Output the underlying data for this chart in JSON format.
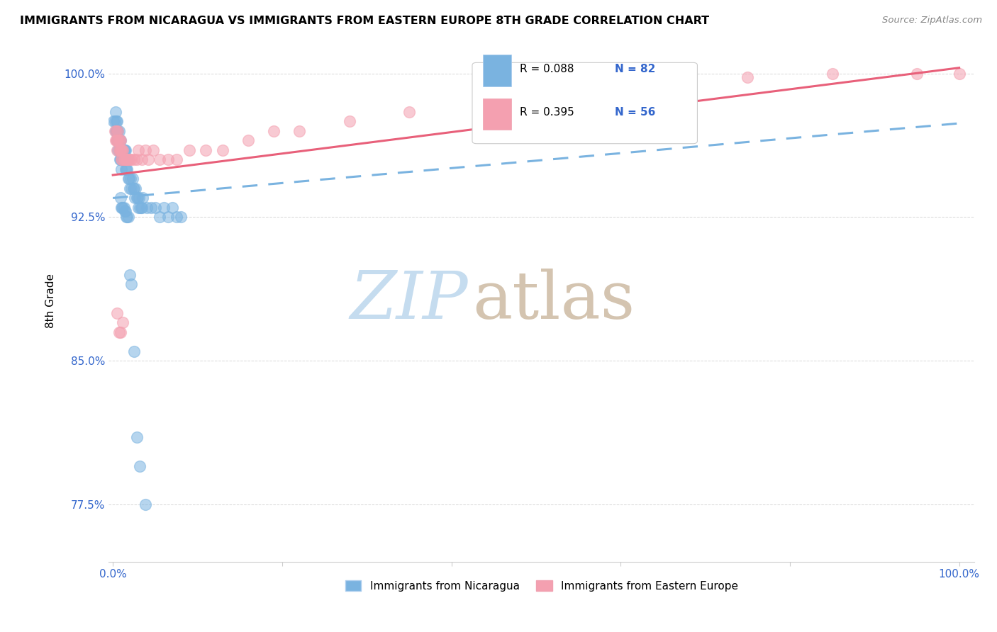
{
  "title": "IMMIGRANTS FROM NICARAGUA VS IMMIGRANTS FROM EASTERN EUROPE 8TH GRADE CORRELATION CHART",
  "source": "Source: ZipAtlas.com",
  "ylabel": "8th Grade",
  "y_min": 0.745,
  "y_max": 1.018,
  "x_min": -0.005,
  "x_max": 1.018,
  "color_nicaragua": "#7ab3e0",
  "color_eastern_europe": "#f4a0b0",
  "color_line_nicaragua": "#7ab3e0",
  "color_line_eastern_europe": "#e8607a",
  "watermark_zip": "ZIP",
  "watermark_atlas": "atlas",
  "watermark_color_zip": "#c8dff0",
  "watermark_color_atlas": "#d8c8b8",
  "nicaragua_x": [
    0.001,
    0.002,
    0.003,
    0.003,
    0.004,
    0.004,
    0.004,
    0.005,
    0.005,
    0.005,
    0.005,
    0.006,
    0.006,
    0.006,
    0.007,
    0.007,
    0.007,
    0.008,
    0.008,
    0.008,
    0.009,
    0.009,
    0.009,
    0.01,
    0.01,
    0.01,
    0.011,
    0.011,
    0.012,
    0.012,
    0.013,
    0.013,
    0.014,
    0.014,
    0.015,
    0.015,
    0.016,
    0.016,
    0.017,
    0.018,
    0.019,
    0.02,
    0.021,
    0.022,
    0.023,
    0.024,
    0.025,
    0.026,
    0.027,
    0.028,
    0.029,
    0.03,
    0.031,
    0.032,
    0.033,
    0.034,
    0.035,
    0.04,
    0.045,
    0.05,
    0.055,
    0.06,
    0.065,
    0.07,
    0.075,
    0.08,
    0.009,
    0.01,
    0.011,
    0.012,
    0.013,
    0.014,
    0.015,
    0.016,
    0.017,
    0.018,
    0.02,
    0.022,
    0.025,
    0.028,
    0.032,
    0.038
  ],
  "nicaragua_y": [
    0.975,
    0.975,
    0.98,
    0.97,
    0.975,
    0.97,
    0.97,
    0.975,
    0.97,
    0.965,
    0.965,
    0.97,
    0.965,
    0.96,
    0.97,
    0.965,
    0.96,
    0.965,
    0.96,
    0.955,
    0.965,
    0.96,
    0.955,
    0.96,
    0.955,
    0.95,
    0.96,
    0.955,
    0.96,
    0.955,
    0.96,
    0.955,
    0.96,
    0.955,
    0.96,
    0.95,
    0.955,
    0.95,
    0.95,
    0.945,
    0.945,
    0.94,
    0.945,
    0.94,
    0.945,
    0.94,
    0.94,
    0.935,
    0.94,
    0.935,
    0.935,
    0.93,
    0.935,
    0.93,
    0.93,
    0.93,
    0.935,
    0.93,
    0.93,
    0.93,
    0.925,
    0.93,
    0.925,
    0.93,
    0.925,
    0.925,
    0.935,
    0.93,
    0.93,
    0.93,
    0.93,
    0.928,
    0.928,
    0.925,
    0.925,
    0.925,
    0.895,
    0.89,
    0.855,
    0.81,
    0.795,
    0.775
  ],
  "eastern_europe_x": [
    0.002,
    0.003,
    0.004,
    0.004,
    0.005,
    0.005,
    0.006,
    0.006,
    0.007,
    0.007,
    0.008,
    0.008,
    0.009,
    0.009,
    0.01,
    0.01,
    0.011,
    0.011,
    0.012,
    0.013,
    0.014,
    0.015,
    0.016,
    0.017,
    0.018,
    0.02,
    0.022,
    0.025,
    0.028,
    0.03,
    0.034,
    0.038,
    0.042,
    0.048,
    0.055,
    0.065,
    0.075,
    0.09,
    0.11,
    0.13,
    0.16,
    0.19,
    0.22,
    0.28,
    0.35,
    0.45,
    0.55,
    0.65,
    0.75,
    0.85,
    0.95,
    1.0,
    0.005,
    0.007,
    0.009,
    0.012
  ],
  "eastern_europe_y": [
    0.97,
    0.965,
    0.97,
    0.965,
    0.965,
    0.96,
    0.97,
    0.965,
    0.965,
    0.96,
    0.965,
    0.96,
    0.965,
    0.96,
    0.96,
    0.955,
    0.96,
    0.955,
    0.96,
    0.955,
    0.955,
    0.955,
    0.955,
    0.955,
    0.955,
    0.955,
    0.955,
    0.955,
    0.955,
    0.96,
    0.955,
    0.96,
    0.955,
    0.96,
    0.955,
    0.955,
    0.955,
    0.96,
    0.96,
    0.96,
    0.965,
    0.97,
    0.97,
    0.975,
    0.98,
    0.985,
    0.99,
    0.995,
    0.998,
    1.0,
    1.0,
    1.0,
    0.875,
    0.865,
    0.865,
    0.87
  ],
  "nic_line_x0": 0.0,
  "nic_line_x1": 1.0,
  "nic_line_y0": 0.935,
  "nic_line_y1": 0.974,
  "ee_line_x0": 0.0,
  "ee_line_x1": 1.0,
  "ee_line_y0": 0.947,
  "ee_line_y1": 1.003
}
